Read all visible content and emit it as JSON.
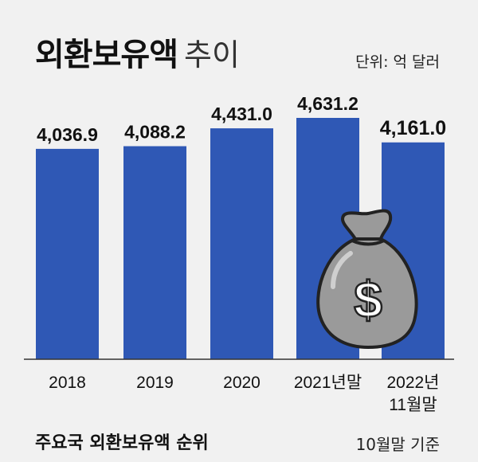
{
  "title": {
    "main": "외환보유액",
    "sub": "추이"
  },
  "unit": "단위: 억 달러",
  "chart_data": {
    "type": "bar",
    "categories": [
      "2018",
      "2019",
      "2020",
      "2021년말",
      "2022년\n11월말"
    ],
    "values": [
      4036.9,
      4088.2,
      4431.0,
      4631.2,
      4161.0
    ],
    "value_labels": [
      "4,036.9",
      "4,088.2",
      "4,431.0",
      "4,631.2",
      "4,161.0"
    ],
    "ylim": [
      0,
      4700
    ],
    "colors": {
      "bar": "#2f58b5"
    },
    "grid": false
  },
  "icon": "money-bag-dollar-icon",
  "footer": {
    "left": "주요국 외환보유액 순위",
    "right": "10월말 기준"
  }
}
